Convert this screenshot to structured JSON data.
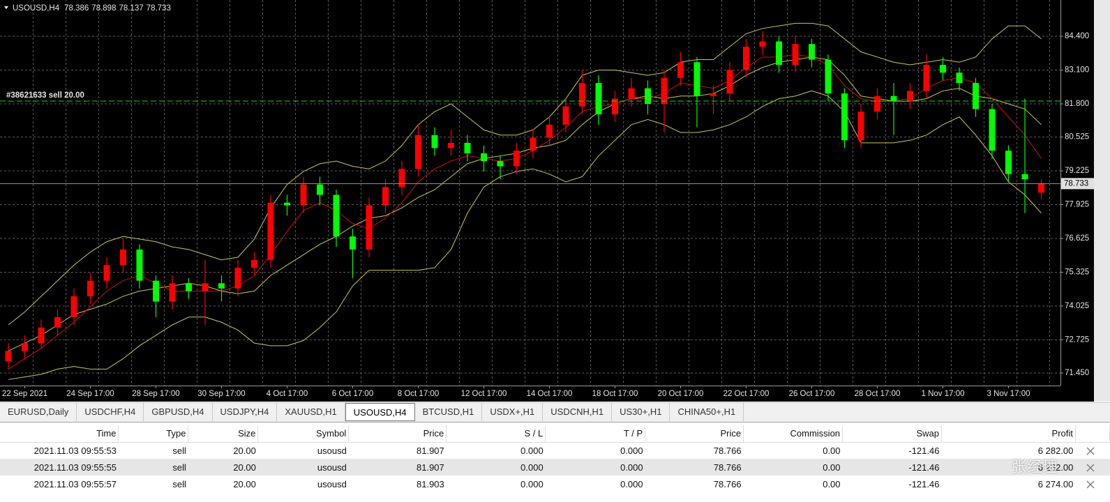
{
  "chart_data": {
    "type": "candlestick",
    "symbol": "USOUSD,H4",
    "categories": [
      null,
      "22 Sep 2021",
      null,
      null,
      null,
      "24 Sep 17:00",
      null,
      null,
      null,
      "28 Sep 17:00",
      null,
      null,
      null,
      "30 Sep 17:00",
      null,
      null,
      null,
      "4 Oct 17:00",
      null,
      null,
      null,
      "6 Oct 17:00",
      null,
      null,
      null,
      "8 Oct 17:00",
      null,
      null,
      null,
      "12 Oct 17:00",
      null,
      null,
      null,
      "14 Oct 17:00",
      null,
      null,
      null,
      "18 Oct 17:00",
      null,
      null,
      null,
      "20 Oct 17:00",
      null,
      null,
      null,
      "22 Oct 17:00",
      null,
      null,
      null,
      "26 Oct 17:00",
      null,
      null,
      null,
      "28 Oct 17:00",
      null,
      null,
      null,
      "1 Nov 17:00",
      null,
      null,
      null,
      "3 Nov 17:00",
      null,
      null
    ],
    "open": [
      71.9,
      72.3,
      72.6,
      73.2,
      73.6,
      74.4,
      75.0,
      75.6,
      76.2,
      75.0,
      74.2,
      74.9,
      74.6,
      74.9,
      74.7,
      75.5,
      75.8,
      78.0,
      77.9,
      78.7,
      78.3,
      76.7,
      76.2,
      77.9,
      78.6,
      79.3,
      80.6,
      80.1,
      80.3,
      79.9,
      79.6,
      79.4,
      80.0,
      80.5,
      81.0,
      81.7,
      82.6,
      81.4,
      82.0,
      82.4,
      81.8,
      82.8,
      83.4,
      82.1,
      82.2,
      83.1,
      84.0,
      84.2,
      83.3,
      84.1,
      83.5,
      82.2,
      80.4,
      81.5,
      82.1,
      81.9,
      82.3,
      83.3,
      83.0,
      82.6,
      81.6,
      80.0,
      79.1,
      78.386
    ],
    "high": [
      72.6,
      72.9,
      73.5,
      73.9,
      74.7,
      75.3,
      75.9,
      76.6,
      76.4,
      75.2,
      75.2,
      75.1,
      75.8,
      75.2,
      75.8,
      76.1,
      78.3,
      78.3,
      79.0,
      79.0,
      78.5,
      77.0,
      78.2,
      78.9,
      79.6,
      81.0,
      80.9,
      80.8,
      80.6,
      80.2,
      79.8,
      80.3,
      80.8,
      81.3,
      82.0,
      83.1,
      82.9,
      82.3,
      82.8,
      82.7,
      83.1,
      83.8,
      83.6,
      82.5,
      83.4,
      84.3,
      84.6,
      84.4,
      84.4,
      84.3,
      83.7,
      82.4,
      81.8,
      82.4,
      82.6,
      82.6,
      83.7,
      83.6,
      83.2,
      82.8,
      81.8,
      80.2,
      82.0,
      78.898
    ],
    "low": [
      71.6,
      72.0,
      72.4,
      72.9,
      73.3,
      74.1,
      74.7,
      75.3,
      74.7,
      73.6,
      73.9,
      74.3,
      73.3,
      74.2,
      74.4,
      75.2,
      75.5,
      77.5,
      77.6,
      77.9,
      76.3,
      75.1,
      75.9,
      77.6,
      78.3,
      79.0,
      79.8,
      79.8,
      79.6,
      79.2,
      78.9,
      79.1,
      79.7,
      80.2,
      80.7,
      81.4,
      81.0,
      81.1,
      81.7,
      81.4,
      80.7,
      82.5,
      80.9,
      81.4,
      81.9,
      82.8,
      83.7,
      83.0,
      83.0,
      83.2,
      81.9,
      80.1,
      80.1,
      81.2,
      80.6,
      81.6,
      82.0,
      82.7,
      82.3,
      81.3,
      79.7,
      78.8,
      77.6,
      78.137
    ],
    "close": [
      72.3,
      72.6,
      73.2,
      73.6,
      74.4,
      75.0,
      75.6,
      76.2,
      75.0,
      74.2,
      74.9,
      74.6,
      74.9,
      74.7,
      75.5,
      75.8,
      78.0,
      77.9,
      78.7,
      78.3,
      76.7,
      76.2,
      77.9,
      78.6,
      79.3,
      80.6,
      80.1,
      80.3,
      79.9,
      79.6,
      79.4,
      80.0,
      80.5,
      81.0,
      81.7,
      82.6,
      81.4,
      82.0,
      82.4,
      81.8,
      82.8,
      83.4,
      82.1,
      82.2,
      83.1,
      84.0,
      84.2,
      83.3,
      84.1,
      83.5,
      82.2,
      80.4,
      81.5,
      82.1,
      81.9,
      82.3,
      83.3,
      83.0,
      82.6,
      81.6,
      80.0,
      79.1,
      78.9,
      78.733
    ],
    "up_color": "#ff0000",
    "down_color": "#00ff00",
    "lines": [
      {
        "color": "#c8c85a",
        "values": [
          73.3,
          73.8,
          74.4,
          75.0,
          75.6,
          76.1,
          76.5,
          76.7,
          76.6,
          76.5,
          76.3,
          76.2,
          76.0,
          75.8,
          75.9,
          76.6,
          77.8,
          78.7,
          79.2,
          79.5,
          79.6,
          79.4,
          79.3,
          79.6,
          80.2,
          81.0,
          81.5,
          81.8,
          81.3,
          80.8,
          80.6,
          80.6,
          80.8,
          81.3,
          82.0,
          82.9,
          83.1,
          83.1,
          83.0,
          82.9,
          83.0,
          83.4,
          83.5,
          83.5,
          84.0,
          84.5,
          84.7,
          84.8,
          84.9,
          84.9,
          84.8,
          84.3,
          83.8,
          83.6,
          83.4,
          83.3,
          83.4,
          83.5,
          83.4,
          83.6,
          84.3,
          84.8,
          84.8,
          84.3
        ]
      },
      {
        "color": "#c8c85a",
        "values": [
          72.3,
          72.6,
          72.9,
          73.3,
          73.7,
          73.9,
          74.1,
          74.4,
          74.6,
          74.7,
          74.8,
          74.9,
          74.8,
          74.6,
          74.5,
          74.6,
          75.2,
          75.6,
          76.0,
          76.4,
          76.7,
          77.1,
          77.4,
          77.5,
          77.8,
          78.2,
          78.5,
          79.0,
          79.5,
          79.7,
          79.8,
          79.9,
          80.1,
          80.2,
          80.4,
          81.0,
          81.5,
          81.8,
          82.0,
          82.1,
          82.0,
          82.1,
          82.1,
          82.2,
          82.5,
          82.9,
          83.2,
          83.4,
          83.5,
          83.6,
          83.5,
          82.9,
          82.1,
          82.0,
          81.9,
          81.9,
          82.0,
          82.3,
          82.4,
          82.1,
          82.0,
          81.8,
          81.6,
          81.0
        ]
      },
      {
        "color": "#c8c85a",
        "values": [
          71.2,
          71.3,
          71.4,
          71.6,
          71.7,
          71.6,
          71.6,
          72.0,
          72.5,
          72.9,
          73.3,
          73.6,
          73.6,
          73.4,
          73.1,
          72.6,
          72.5,
          72.5,
          72.7,
          73.2,
          73.8,
          74.8,
          75.4,
          75.4,
          75.4,
          75.4,
          75.5,
          76.2,
          77.6,
          78.6,
          79.0,
          79.2,
          79.3,
          79.1,
          78.8,
          79.0,
          79.8,
          80.4,
          81.0,
          81.2,
          81.0,
          80.7,
          80.7,
          80.8,
          81.0,
          81.3,
          81.7,
          82.0,
          82.1,
          82.3,
          82.1,
          81.5,
          80.3,
          80.3,
          80.3,
          80.4,
          80.6,
          81.0,
          81.3,
          80.6,
          79.8,
          78.8,
          78.3,
          77.6
        ]
      },
      {
        "color": "#d01010",
        "values": [
          71.6,
          72.0,
          72.4,
          72.9,
          73.4,
          74.0,
          74.6,
          75.0,
          75.2,
          74.9,
          74.6,
          74.6,
          74.6,
          74.6,
          74.8,
          75.2,
          76.0,
          76.9,
          77.7,
          78.0,
          77.7,
          77.2,
          77.0,
          77.4,
          78.0,
          78.8,
          79.3,
          79.6,
          79.8,
          79.7,
          79.6,
          79.7,
          80.0,
          80.4,
          80.9,
          81.5,
          81.7,
          81.8,
          82.0,
          82.0,
          82.2,
          82.6,
          82.5,
          82.4,
          82.7,
          83.2,
          83.6,
          83.6,
          83.7,
          83.6,
          83.3,
          82.5,
          82.0,
          81.9,
          81.9,
          82.0,
          82.4,
          82.7,
          82.8,
          82.6,
          82.0,
          81.3,
          80.6,
          79.7
        ]
      }
    ],
    "ylim": [
      70.967,
      85.794
    ],
    "yticks": [
      {
        "value": 71.45,
        "label": "71.450"
      },
      {
        "value": 72.725,
        "label": "72.725"
      },
      {
        "value": 74.025,
        "label": "74.025"
      },
      {
        "value": 75.325,
        "label": "75.325"
      },
      {
        "value": 76.625,
        "label": "76.625"
      },
      {
        "value": 77.925,
        "label": "77.925"
      },
      {
        "value": 79.225,
        "label": "79.225"
      },
      {
        "value": 80.525,
        "label": "80.525"
      },
      {
        "value": 81.8,
        "label": "81.800"
      },
      {
        "value": 83.1,
        "label": "83.100"
      },
      {
        "value": 84.4,
        "label": "84.400"
      }
    ],
    "grid": true,
    "order_line": {
      "label": "#38621633 sell 20.00",
      "price": 81.907,
      "color": "#00e000"
    }
  },
  "tabs": [
    "EURUSD,Daily",
    "USDCHF,H4",
    "GBPUSD,H4",
    "USDJPY,H4",
    "XAUUSD,H1",
    "USOUSD,H4",
    "BTCUSD,H1",
    "USDX+,H1",
    "USDCNH,H1",
    "US30+,H1",
    "CHINA50+,H1"
  ],
  "active_tab": "USOUSD,H4",
  "table": {
    "columns": [
      "Time",
      "Type",
      "Size",
      "Symbol",
      "Price",
      "S / L",
      "T / P",
      "Price",
      "Commission",
      "Swap",
      "Profit"
    ],
    "rows": [
      [
        "2021.11.03 09:55:53",
        "sell",
        "20.00",
        "usousd",
        "81.907",
        "0.000",
        "0.000",
        "78.766",
        "0.00",
        "-121.46",
        "6 282.00"
      ],
      [
        "2021.11.03 09:55:55",
        "sell",
        "20.00",
        "usousd",
        "81.907",
        "0.000",
        "0.000",
        "78.766",
        "0.00",
        "-121.46",
        "6 282.00"
      ],
      [
        "2021.11.03 09:55:57",
        "sell",
        "20.00",
        "usousd",
        "81.903",
        "0.000",
        "0.000",
        "78.766",
        "0.00",
        "-121.46",
        "6 274.00"
      ]
    ]
  },
  "watermark": "张经理"
}
